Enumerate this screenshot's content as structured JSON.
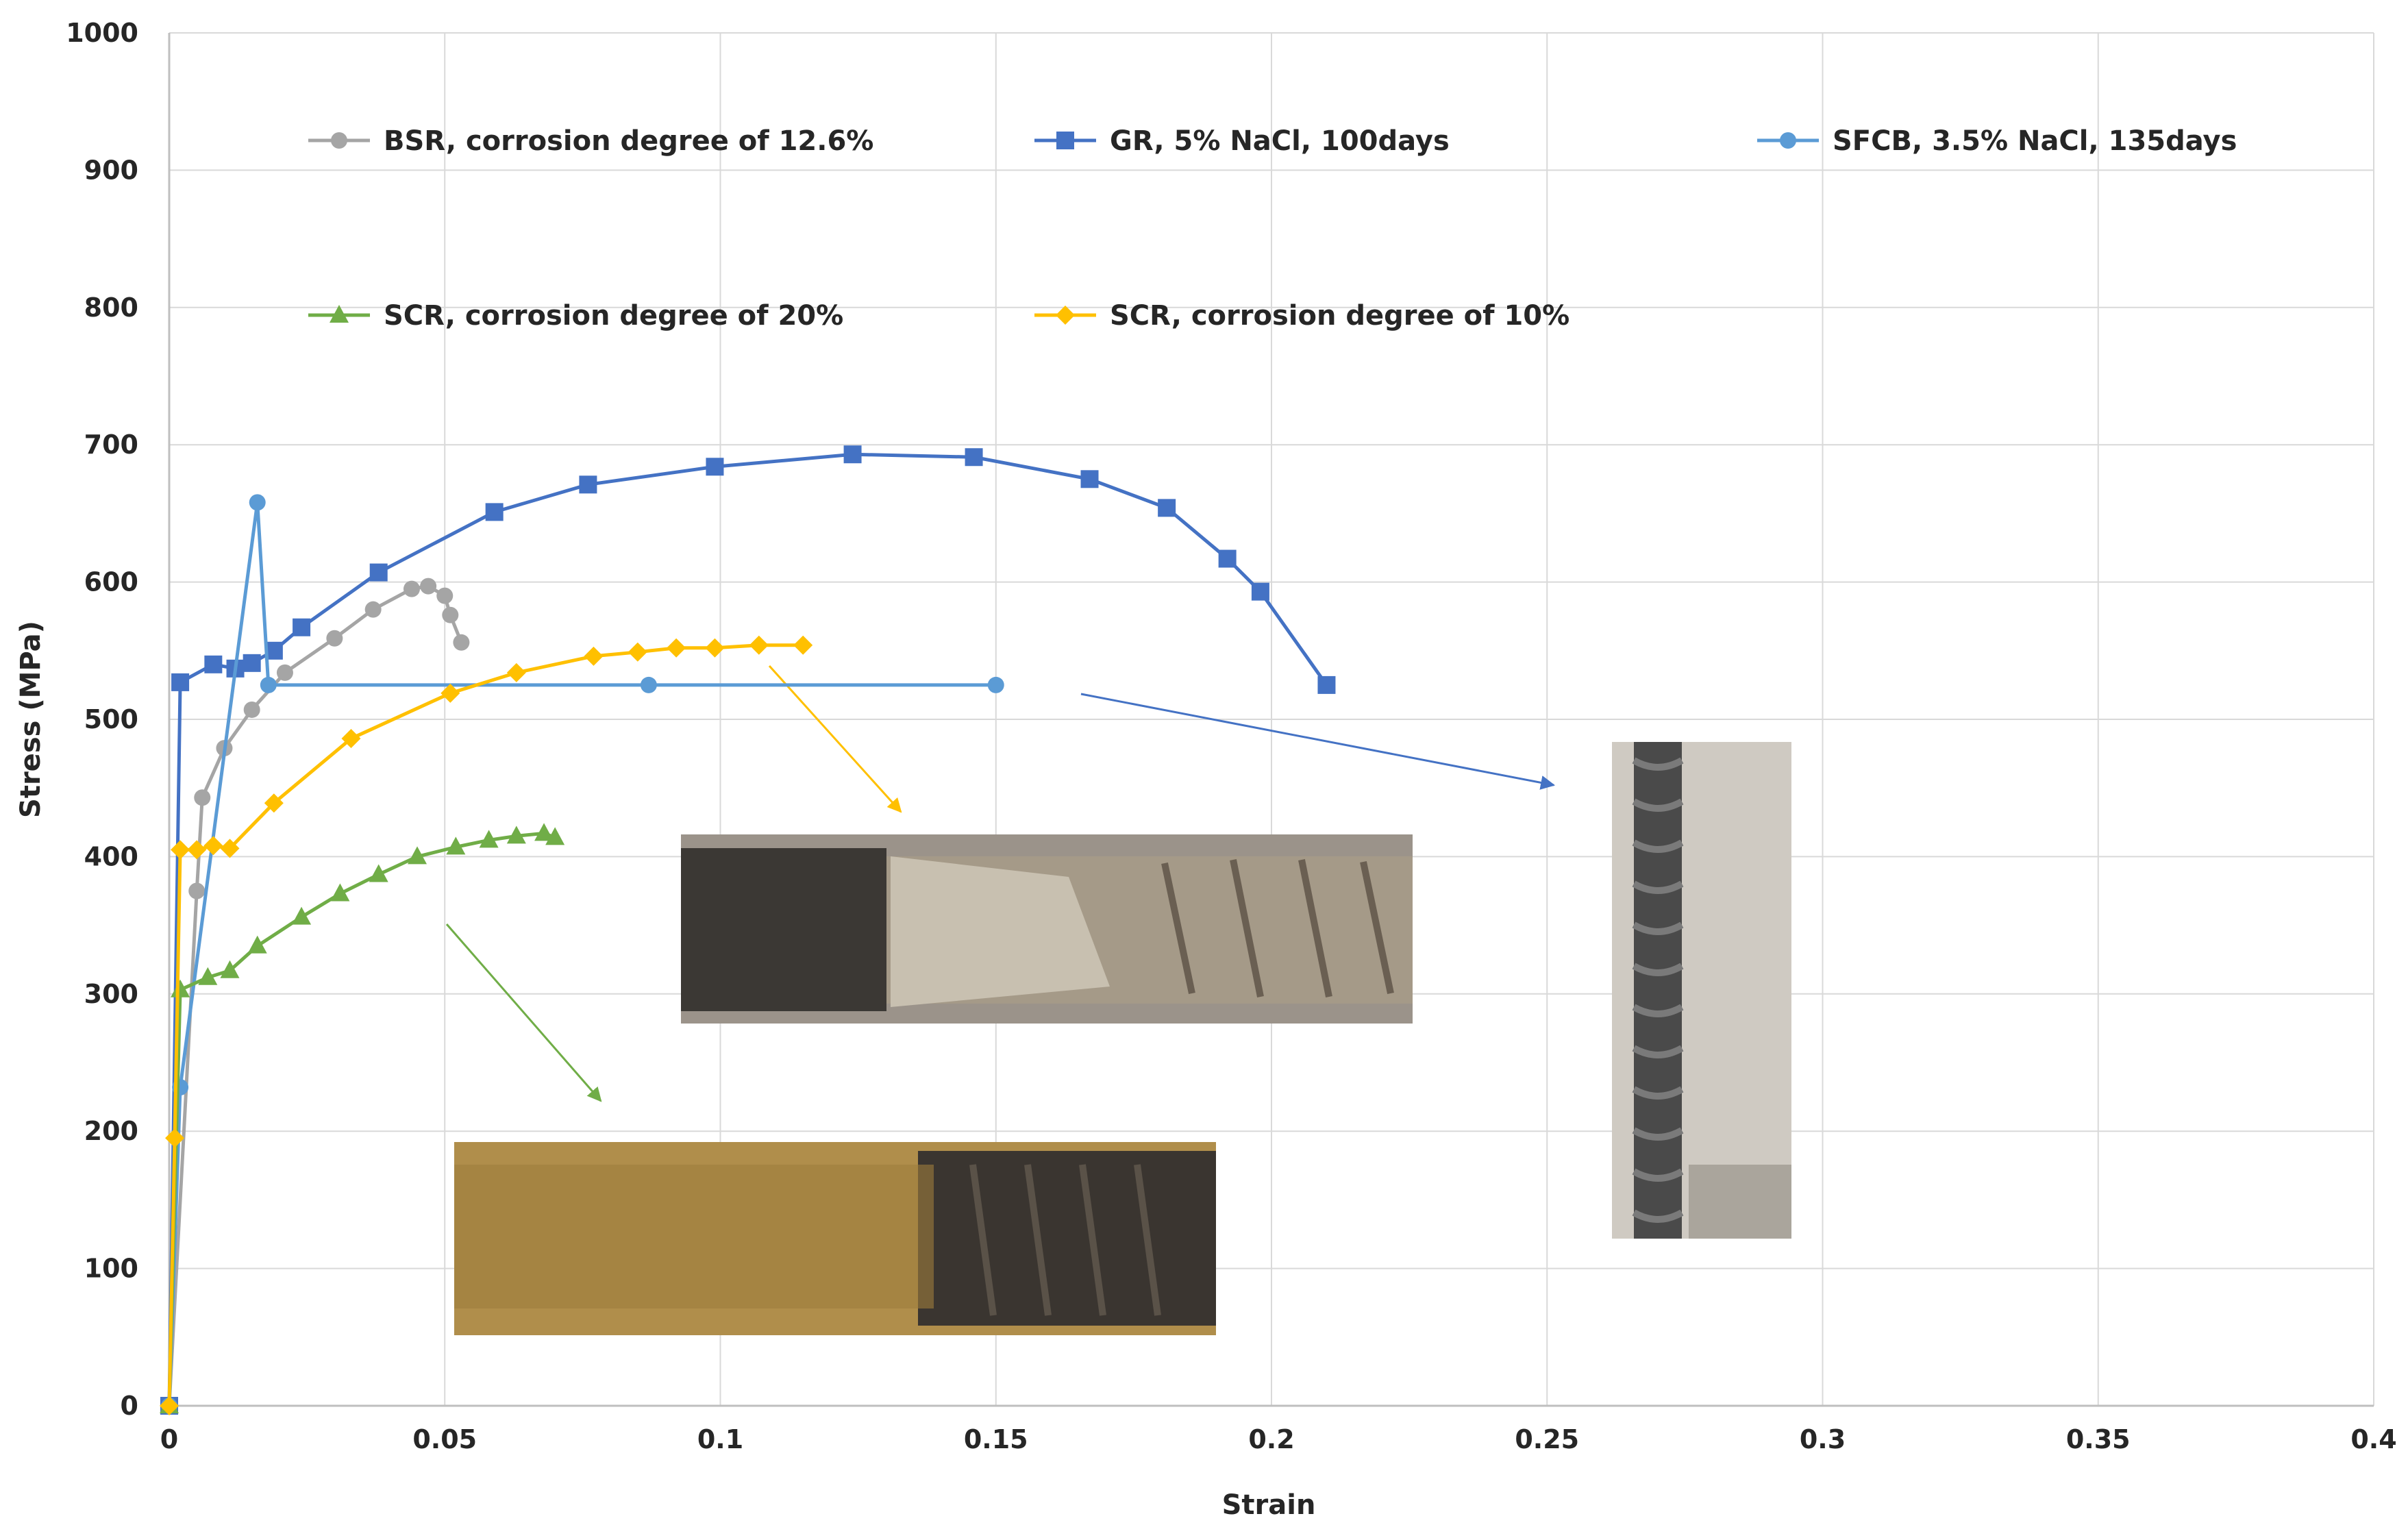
{
  "chart_data": {
    "type": "line",
    "xlabel": "Strain",
    "ylabel": "Stress (MPa)",
    "xlim": [
      0,
      0.4
    ],
    "ylim": [
      0,
      1000
    ],
    "x_ticks": [
      "0",
      "0.05",
      "0.1",
      "0.15",
      "0.2",
      "0.25",
      "0.3",
      "0.35",
      "0.4"
    ],
    "y_ticks": [
      "0",
      "100",
      "200",
      "300",
      "400",
      "500",
      "600",
      "700",
      "800",
      "900",
      "1000"
    ],
    "grid": true,
    "legend_position": "top",
    "series": [
      {
        "name": "BSR, corrosion degree of 12.6%",
        "color": "#a5a5a5",
        "marker": "circle",
        "x": [
          0.0,
          0.005,
          0.006,
          0.01,
          0.015,
          0.021,
          0.03,
          0.037,
          0.044,
          0.047,
          0.05,
          0.051,
          0.053
        ],
        "y": [
          0,
          375,
          443,
          479,
          507,
          534,
          559,
          580,
          595,
          597,
          590,
          576,
          556
        ]
      },
      {
        "name": "GR, 5% NaCl, 100days",
        "color": "#4472c4",
        "marker": "square",
        "x": [
          0.0,
          0.002,
          0.008,
          0.012,
          0.015,
          0.019,
          0.024,
          0.038,
          0.059,
          0.076,
          0.099,
          0.124,
          0.146,
          0.167,
          0.181,
          0.192,
          0.198,
          0.21
        ],
        "y": [
          0,
          527,
          540,
          537,
          541,
          550,
          567,
          607,
          651,
          671,
          684,
          693,
          691,
          675,
          654,
          617,
          593,
          525
        ]
      },
      {
        "name": "SFCB, 3.5% NaCl, 135days",
        "color": "#5b9bd5",
        "marker": "circle",
        "x": [
          0.0,
          0.002,
          0.016,
          0.018,
          0.087,
          0.15
        ],
        "y": [
          0,
          232,
          658,
          525,
          525,
          525
        ]
      },
      {
        "name": "SCR, corrosion degree of 20%",
        "color": "#70ad47",
        "marker": "triangle",
        "x": [
          0.0,
          0.002,
          0.007,
          0.011,
          0.016,
          0.024,
          0.031,
          0.038,
          0.045,
          0.052,
          0.058,
          0.063,
          0.068,
          0.07
        ],
        "y": [
          0,
          303,
          312,
          317,
          335,
          356,
          373,
          387,
          400,
          407,
          412,
          415,
          417,
          414
        ]
      },
      {
        "name": "SCR, corrosion degree of 10%",
        "color": "#ffc000",
        "marker": "diamond",
        "x": [
          0.0,
          0.001,
          0.002,
          0.005,
          0.008,
          0.011,
          0.019,
          0.033,
          0.051,
          0.063,
          0.077,
          0.085,
          0.092,
          0.099,
          0.107,
          0.115
        ],
        "y": [
          0,
          195,
          405,
          405,
          408,
          406,
          439,
          486,
          519,
          534,
          546,
          549,
          552,
          552,
          554,
          554
        ]
      }
    ]
  }
}
